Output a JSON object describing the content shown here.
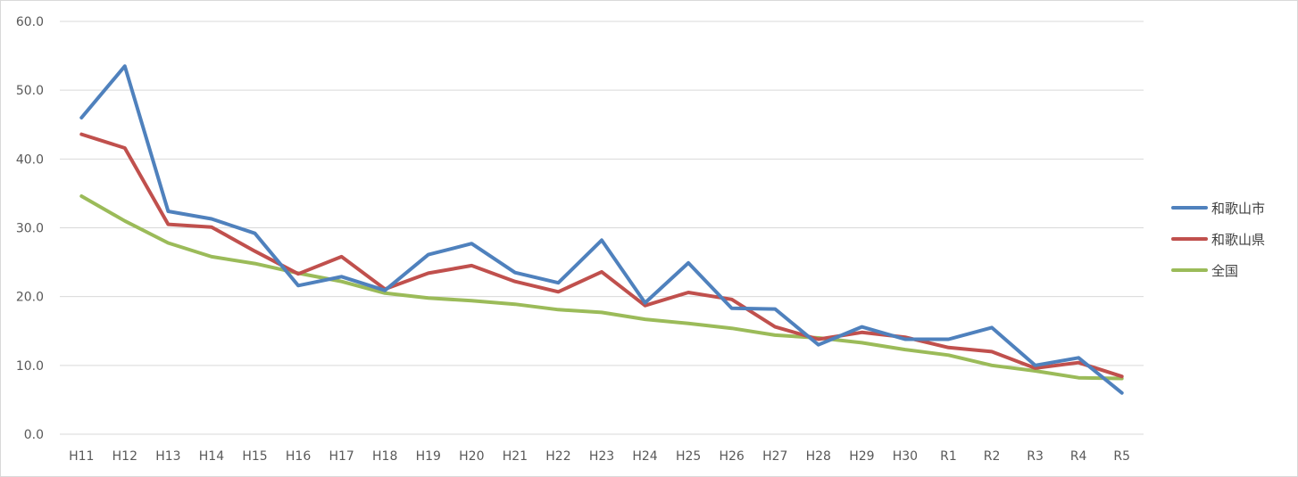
{
  "chart_data": {
    "type": "line",
    "title": "",
    "xlabel": "",
    "ylabel": "",
    "categories": [
      "H11",
      "H12",
      "H13",
      "H14",
      "H15",
      "H16",
      "H17",
      "H18",
      "H19",
      "H20",
      "H21",
      "H22",
      "H23",
      "H24",
      "H25",
      "H26",
      "H27",
      "H28",
      "H29",
      "H30",
      "R1",
      "R2",
      "R3",
      "R4",
      "R5"
    ],
    "ylim": [
      0,
      60
    ],
    "yticks": [
      "0.0",
      "10.0",
      "20.0",
      "30.0",
      "40.0",
      "50.0",
      "60.0"
    ],
    "grid": "horizontal",
    "legend_position": "right",
    "series": [
      {
        "name": "和歌山市",
        "color": "#4f81bd",
        "values": [
          46.0,
          53.5,
          32.4,
          31.3,
          29.2,
          21.6,
          22.9,
          20.9,
          26.1,
          27.7,
          23.5,
          22.0,
          28.2,
          19.1,
          24.9,
          18.3,
          18.2,
          13.0,
          15.6,
          13.8,
          13.8,
          15.5,
          10.0,
          11.1,
          6.0
        ]
      },
      {
        "name": "和歌山県",
        "color": "#c0504d",
        "values": [
          43.6,
          41.6,
          30.5,
          30.1,
          26.6,
          23.3,
          25.8,
          21.1,
          23.4,
          24.5,
          22.2,
          20.7,
          23.6,
          18.7,
          20.6,
          19.6,
          15.6,
          13.8,
          14.8,
          14.1,
          12.6,
          12.0,
          9.6,
          10.4,
          8.4
        ]
      },
      {
        "name": "全国",
        "color": "#9bbb59",
        "values": [
          34.6,
          31.0,
          27.8,
          25.8,
          24.8,
          23.4,
          22.2,
          20.5,
          19.8,
          19.4,
          18.9,
          18.1,
          17.7,
          16.7,
          16.1,
          15.4,
          14.4,
          14.0,
          13.3,
          12.3,
          11.5,
          10.0,
          9.2,
          8.2,
          8.1
        ]
      }
    ]
  }
}
